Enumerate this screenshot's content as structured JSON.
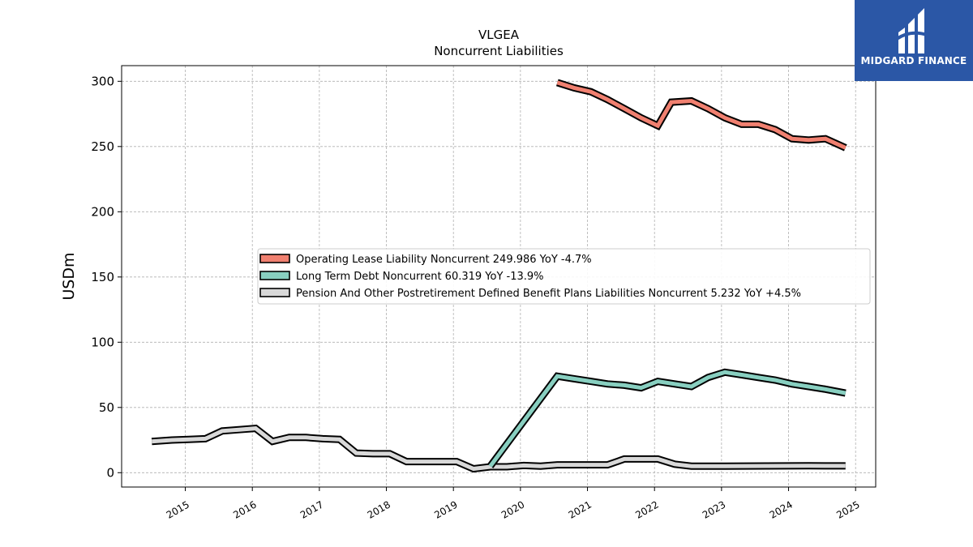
{
  "logo": {
    "text": "MIDGARD FINANCE"
  },
  "chart_data": {
    "type": "line",
    "title": "VLGEA",
    "subtitle": "Noncurrent  Liabilities",
    "xlabel": "",
    "ylabel": "USDm",
    "xlim": [
      2014.05,
      2025.3
    ],
    "ylim": [
      -11,
      312
    ],
    "grid": true,
    "legend_position": "center-right",
    "x_ticks": [
      "2015",
      "2016",
      "2017",
      "2018",
      "2019",
      "2020",
      "2021",
      "2022",
      "2023",
      "2024",
      "2025"
    ],
    "y_ticks": [
      0,
      50,
      100,
      150,
      200,
      250,
      300
    ],
    "series": [
      {
        "name": "Operating Lease Liability Noncurrent  249.986 YoY -4.7%",
        "color": "#f08070",
        "points": [
          [
            2020.55,
            299
          ],
          [
            2020.8,
            295
          ],
          [
            2021.05,
            292
          ],
          [
            2021.3,
            286
          ],
          [
            2021.55,
            279
          ],
          [
            2021.8,
            272
          ],
          [
            2022.05,
            266
          ],
          [
            2022.25,
            284
          ],
          [
            2022.55,
            285
          ],
          [
            2022.8,
            279
          ],
          [
            2023.05,
            272
          ],
          [
            2023.3,
            267
          ],
          [
            2023.55,
            267
          ],
          [
            2023.8,
            263
          ],
          [
            2024.05,
            256
          ],
          [
            2024.3,
            255
          ],
          [
            2024.55,
            256
          ],
          [
            2024.85,
            249
          ]
        ]
      },
      {
        "name": "Long Term Debt Noncurrent  60.319 YoY -13.9%",
        "color": "#88cfc0",
        "points": [
          [
            2019.55,
            5
          ],
          [
            2020.55,
            74
          ],
          [
            2020.8,
            72
          ],
          [
            2021.05,
            70
          ],
          [
            2021.3,
            68
          ],
          [
            2021.55,
            67
          ],
          [
            2021.8,
            65
          ],
          [
            2022.05,
            70
          ],
          [
            2022.3,
            68
          ],
          [
            2022.55,
            66
          ],
          [
            2022.8,
            73
          ],
          [
            2023.05,
            77
          ],
          [
            2023.3,
            75
          ],
          [
            2023.55,
            73
          ],
          [
            2023.8,
            71
          ],
          [
            2024.05,
            68
          ],
          [
            2024.3,
            66
          ],
          [
            2024.55,
            64
          ],
          [
            2024.85,
            61
          ]
        ]
      },
      {
        "name": "Pension And Other Postretirement Defined Benefit Plans Liabilities Noncurrent  5.232 YoY +4.5%",
        "color": "#d8d8d8",
        "points": [
          [
            2014.5,
            24
          ],
          [
            2014.8,
            25
          ],
          [
            2015.05,
            25.5
          ],
          [
            2015.3,
            26
          ],
          [
            2015.55,
            32
          ],
          [
            2015.8,
            33
          ],
          [
            2016.05,
            34
          ],
          [
            2016.3,
            24
          ],
          [
            2016.55,
            27
          ],
          [
            2016.8,
            27
          ],
          [
            2017.05,
            26
          ],
          [
            2017.3,
            25.5
          ],
          [
            2017.55,
            15
          ],
          [
            2017.8,
            14.5
          ],
          [
            2018.05,
            14.5
          ],
          [
            2018.3,
            8.5
          ],
          [
            2018.55,
            8.5
          ],
          [
            2018.8,
            8.5
          ],
          [
            2019.05,
            8.5
          ],
          [
            2019.3,
            3
          ],
          [
            2019.55,
            4.5
          ],
          [
            2019.8,
            4.5
          ],
          [
            2020.05,
            5.5
          ],
          [
            2020.3,
            5
          ],
          [
            2020.55,
            6
          ],
          [
            2020.8,
            6
          ],
          [
            2021.05,
            6
          ],
          [
            2021.3,
            6
          ],
          [
            2021.55,
            10.5
          ],
          [
            2021.8,
            10.5
          ],
          [
            2022.05,
            10.5
          ],
          [
            2022.3,
            6.5
          ],
          [
            2022.55,
            5
          ],
          [
            2022.8,
            5
          ],
          [
            2023.05,
            5
          ],
          [
            2024.3,
            5.3
          ],
          [
            2024.85,
            5.2
          ]
        ]
      }
    ]
  }
}
